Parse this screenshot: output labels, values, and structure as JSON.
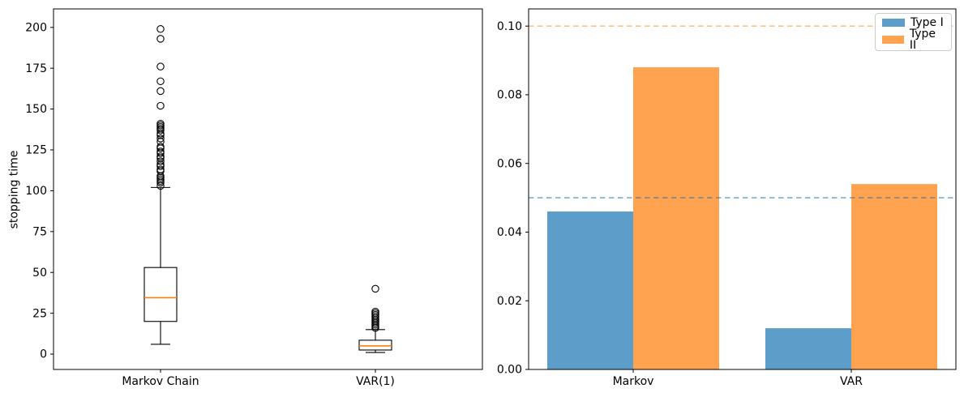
{
  "figure": {
    "background": "#ffffff"
  },
  "colors": {
    "axis": "#000000",
    "tick_label": "#000000",
    "box_edge": "#000000",
    "median_line": "#ff7f0e",
    "type1_bar": "rgba(31,119,180,0.72)",
    "type2_bar": "rgba(255,127,14,0.72)",
    "type1_ref_line": "rgba(31,119,180,0.55)",
    "type2_ref_line": "rgba(255,127,14,0.50)"
  },
  "chart_data": [
    {
      "type": "boxplot",
      "title": "",
      "xlabel": "",
      "ylabel": "stopping time",
      "categories": [
        "Markov Chain",
        "VAR(1)"
      ],
      "yticks": [
        0,
        25,
        50,
        75,
        100,
        125,
        150,
        175,
        200
      ],
      "ytick_labels": [
        "0",
        "25",
        "50",
        "75",
        "100",
        "125",
        "150",
        "175",
        "200"
      ],
      "ylim": [
        -9.4,
        211.3
      ],
      "grid": false,
      "boxes": [
        {
          "category": "Markov Chain",
          "whisker_low": 6,
          "q1": 20,
          "median": 34.5,
          "q3": 53,
          "whisker_high": 102,
          "outliers": [
            103,
            105,
            106,
            107,
            108,
            109,
            112,
            113,
            115,
            116,
            118,
            120,
            121,
            123,
            124,
            126,
            127,
            130,
            132,
            134,
            135,
            137,
            138,
            139,
            140,
            141,
            152,
            161,
            167,
            176,
            193,
            199
          ]
        },
        {
          "category": "VAR(1)",
          "whisker_low": 1,
          "q1": 2.5,
          "median": 5,
          "q3": 8.5,
          "whisker_high": 15,
          "outliers": [
            16,
            17,
            18,
            19,
            20,
            21,
            22,
            23,
            24,
            25,
            26,
            40
          ]
        }
      ]
    },
    {
      "type": "grouped-bar",
      "title": "",
      "xlabel": "",
      "ylabel": "",
      "categories": [
        "Markov",
        "VAR"
      ],
      "series": [
        {
          "name": "Type I",
          "values": [
            0.046,
            0.012
          ],
          "color": "rgba(31,119,180,0.72)",
          "ref_line": 0.05,
          "ref_line_color": "rgba(31,119,180,0.55)"
        },
        {
          "name": "Type II",
          "values": [
            0.088,
            0.054
          ],
          "color": "rgba(255,127,14,0.72)",
          "ref_line": 0.1,
          "ref_line_color": "rgba(255,127,14,0.50)"
        }
      ],
      "yticks": [
        0.0,
        0.02,
        0.04,
        0.06,
        0.08,
        0.1
      ],
      "ytick_labels": [
        "0.00",
        "0.02",
        "0.04",
        "0.06",
        "0.08",
        "0.10"
      ],
      "ylim": [
        0,
        0.105
      ],
      "grid": false,
      "legend": {
        "position": "upper right",
        "items": [
          "Type I",
          "Type II"
        ]
      }
    }
  ]
}
